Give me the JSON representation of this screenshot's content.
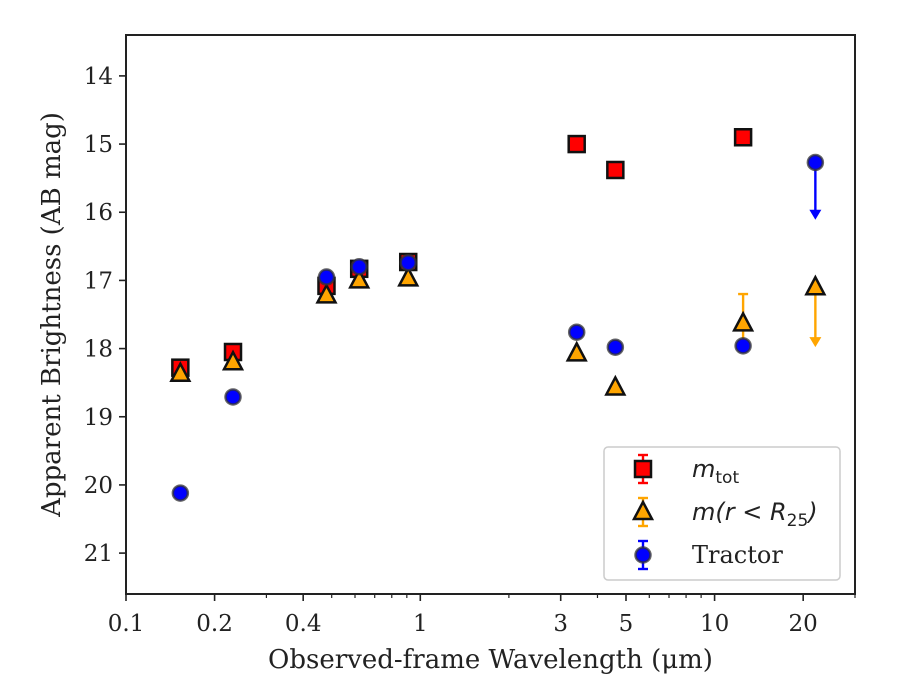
{
  "chart_data": {
    "type": "scatter",
    "xscale": "log",
    "xlim": [
      0.1,
      30
    ],
    "ylim": [
      21.6,
      13.4
    ],
    "y_inverted": true,
    "xlabel": "Observed-frame Wavelength (μm)",
    "ylabel": "Apparent Brightness (AB mag)",
    "xticks": [
      {
        "value": 0.1,
        "label": "0.1"
      },
      {
        "value": 0.2,
        "label": "0.2"
      },
      {
        "value": 0.4,
        "label": "0.4"
      },
      {
        "value": 1,
        "label": "1"
      },
      {
        "value": 3,
        "label": "3"
      },
      {
        "value": 5,
        "label": "5"
      },
      {
        "value": 10,
        "label": "10"
      },
      {
        "value": 20,
        "label": "20"
      }
    ],
    "yticks": [
      {
        "value": 14,
        "label": "14"
      },
      {
        "value": 15,
        "label": "15"
      },
      {
        "value": 16,
        "label": "16"
      },
      {
        "value": 17,
        "label": "17"
      },
      {
        "value": 18,
        "label": "18"
      },
      {
        "value": 19,
        "label": "19"
      },
      {
        "value": 20,
        "label": "20"
      },
      {
        "value": 21,
        "label": "21"
      }
    ],
    "grid": false,
    "legend_position": "lower-right",
    "series": [
      {
        "name": "m_tot",
        "legend_main": "m",
        "legend_sub": "tot",
        "marker": "square",
        "color": "#ff0000",
        "points": [
          {
            "x": 0.153,
            "y": 18.28
          },
          {
            "x": 0.231,
            "y": 18.05
          },
          {
            "x": 0.48,
            "y": 17.08
          },
          {
            "x": 0.62,
            "y": 16.83
          },
          {
            "x": 0.91,
            "y": 16.73
          },
          {
            "x": 3.4,
            "y": 15.0
          },
          {
            "x": 4.6,
            "y": 15.38
          },
          {
            "x": 12.5,
            "y": 14.9
          }
        ]
      },
      {
        "name": "m(r < R25)",
        "legend_main": "m(r < R",
        "legend_sub": "25",
        "legend_tail": ")",
        "marker": "triangle",
        "color": "#ffa500",
        "points": [
          {
            "x": 0.153,
            "y": 18.37
          },
          {
            "x": 0.231,
            "y": 18.2
          },
          {
            "x": 0.48,
            "y": 17.22
          },
          {
            "x": 0.62,
            "y": 17.0
          },
          {
            "x": 0.91,
            "y": 16.97
          },
          {
            "x": 3.4,
            "y": 18.07
          },
          {
            "x": 4.6,
            "y": 18.57
          },
          {
            "x": 12.5,
            "y": 17.63,
            "err": [
              17.2,
              18.0
            ]
          },
          {
            "x": 22.0,
            "y": 17.1,
            "upper_limit_to": 17.95
          }
        ]
      },
      {
        "name": "Tractor",
        "marker": "circle",
        "color": "#0000ff",
        "points": [
          {
            "x": 0.153,
            "y": 20.12
          },
          {
            "x": 0.231,
            "y": 18.71
          },
          {
            "x": 0.48,
            "y": 16.95
          },
          {
            "x": 0.62,
            "y": 16.8
          },
          {
            "x": 0.91,
            "y": 16.74
          },
          {
            "x": 3.4,
            "y": 17.76
          },
          {
            "x": 4.6,
            "y": 17.98
          },
          {
            "x": 12.5,
            "y": 17.96
          },
          {
            "x": 22.0,
            "y": 15.27,
            "upper_limit_to": 16.08
          }
        ]
      }
    ]
  }
}
